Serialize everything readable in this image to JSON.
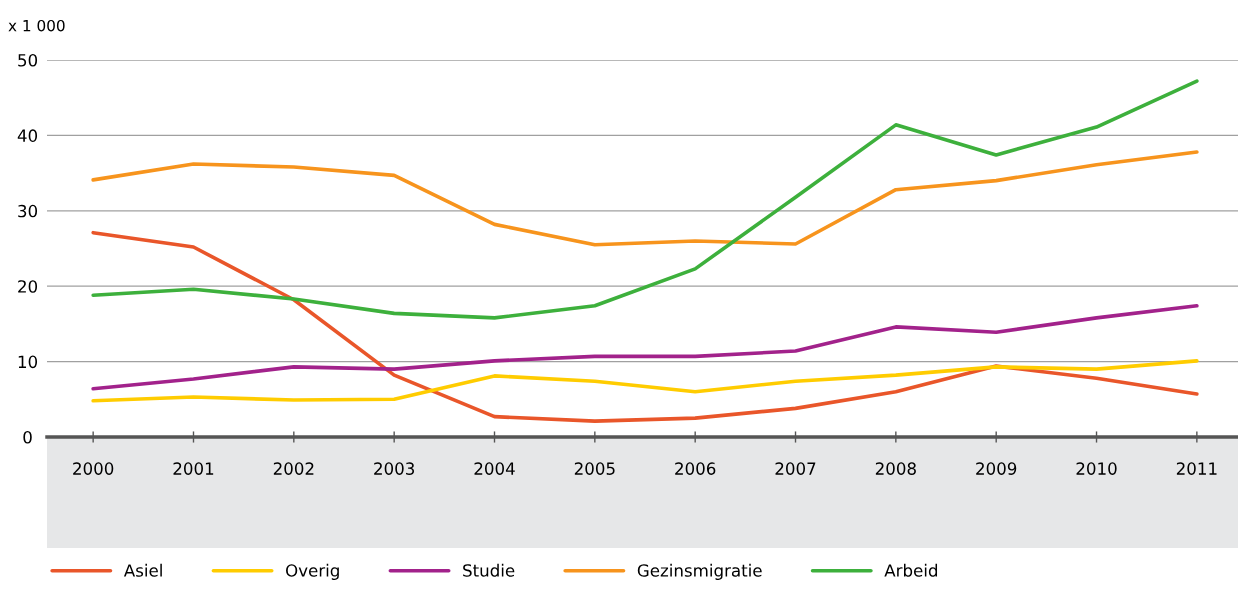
{
  "chart_data": {
    "type": "line",
    "annotations": [
      "x 1 000"
    ],
    "categories": [
      "2000",
      "2001",
      "2002",
      "2003",
      "2004",
      "2005",
      "2006",
      "2007",
      "2008",
      "2009",
      "2010",
      "2011"
    ],
    "series": [
      {
        "name": "Asiel",
        "color": "#e9562a",
        "values": [
          27.1,
          25.2,
          18.2,
          8.2,
          2.7,
          2.1,
          2.5,
          3.8,
          6.0,
          9.4,
          7.8,
          5.7
        ]
      },
      {
        "name": "Overig",
        "color": "#ffcc00",
        "values": [
          4.8,
          5.3,
          4.9,
          5.0,
          8.1,
          7.4,
          6.0,
          7.4,
          8.2,
          9.3,
          9.0,
          10.1
        ]
      },
      {
        "name": "Studie",
        "color": "#a2228b",
        "values": [
          6.4,
          7.7,
          9.3,
          9.0,
          10.1,
          10.7,
          10.7,
          11.4,
          14.6,
          13.9,
          15.8,
          17.4
        ]
      },
      {
        "name": "Gezinsmigratie",
        "color": "#f7941d",
        "values": [
          34.1,
          36.2,
          35.8,
          34.7,
          28.2,
          25.5,
          26.0,
          25.6,
          32.8,
          34.0,
          36.1,
          37.8
        ]
      },
      {
        "name": "Arbeid",
        "color": "#3db03c",
        "values": [
          18.8,
          19.6,
          18.3,
          16.4,
          15.8,
          17.4,
          22.3,
          31.8,
          41.4,
          37.4,
          41.1,
          47.2
        ]
      }
    ],
    "ylim": [
      0,
      50
    ],
    "yticks": [
      0,
      10,
      20,
      30,
      40,
      50
    ],
    "grid": "y",
    "legend": "bottom",
    "marker": "none",
    "line_style": "solid"
  }
}
